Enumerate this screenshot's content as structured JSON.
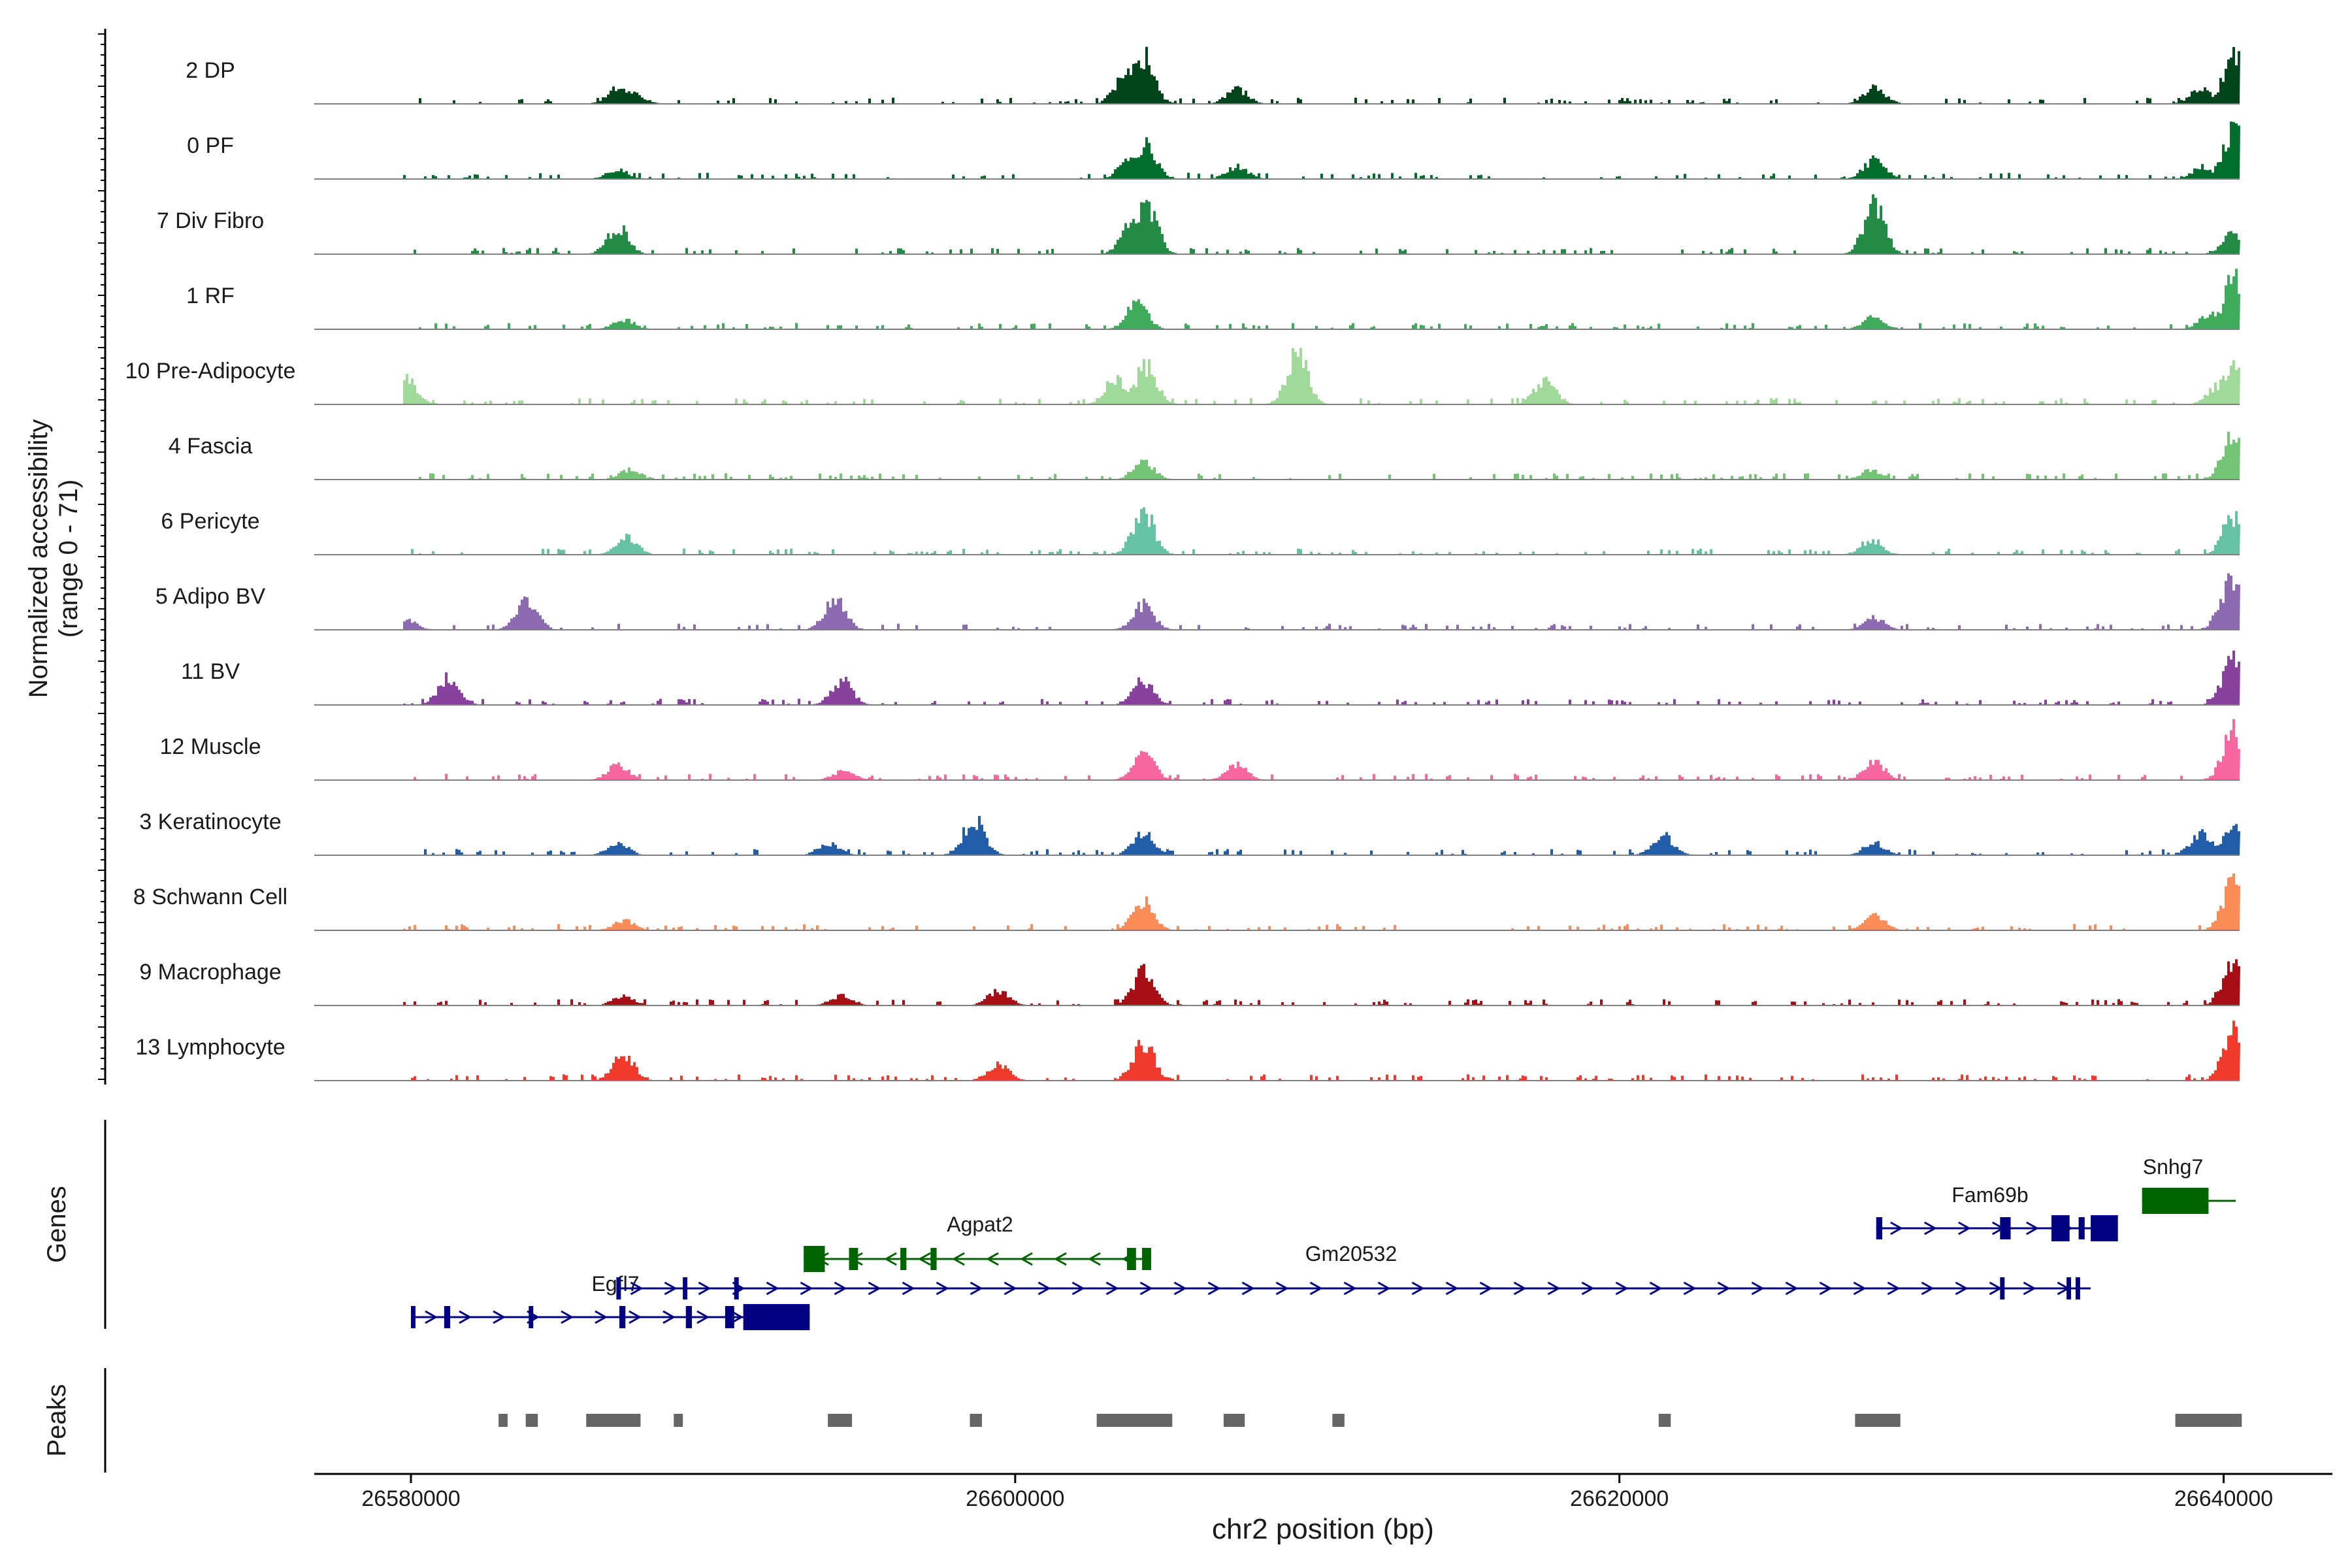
{
  "chart_data": {
    "type": "area",
    "title": "",
    "xlabel": "chr2 position (bp)",
    "ylabel": "Normalized accessibility",
    "ylabel_range": "(range 0 - 71)",
    "ylim": [
      0,
      71
    ],
    "xlim": [
      26576800,
      26643600
    ],
    "x_ticks": [
      26580000,
      26600000,
      26620000,
      26640000
    ],
    "x_tick_labels": [
      "26580000",
      "26600000",
      "26620000",
      "26640000"
    ],
    "track_labels": {
      "genes": "Genes",
      "peaks": "Peaks"
    },
    "series": [
      {
        "name": "2 DP",
        "color": "#00441b",
        "peaks": [
          [
            26586800,
            0.3
          ],
          [
            26587300,
            0.25
          ],
          [
            26603600,
            0.6
          ],
          [
            26604200,
            1.0
          ],
          [
            26607300,
            0.3
          ],
          [
            26628400,
            0.35
          ],
          [
            26639200,
            0.3
          ],
          [
            26640300,
            1.0
          ]
        ]
      },
      {
        "name": "0 PF",
        "color": "#006d2c",
        "peaks": [
          [
            26586800,
            0.2
          ],
          [
            26603800,
            0.5
          ],
          [
            26604300,
            0.7
          ],
          [
            26607300,
            0.25
          ],
          [
            26628400,
            0.4
          ],
          [
            26639300,
            0.25
          ],
          [
            26640300,
            1.0
          ]
        ]
      },
      {
        "name": "7 Div Fibro",
        "color": "#238b45",
        "peaks": [
          [
            26586800,
            0.55
          ],
          [
            26603800,
            0.6
          ],
          [
            26604300,
            1.0
          ],
          [
            26628400,
            1.0
          ],
          [
            26640300,
            0.45
          ]
        ]
      },
      {
        "name": "1 RF",
        "color": "#41ab5d",
        "peaks": [
          [
            26587000,
            0.2
          ],
          [
            26604000,
            0.55
          ],
          [
            26628400,
            0.25
          ],
          [
            26639500,
            0.3
          ],
          [
            26640300,
            1.0
          ]
        ]
      },
      {
        "name": "10 Pre-Adipocyte",
        "color": "#a1d99b",
        "peaks": [
          [
            26579800,
            0.5
          ],
          [
            26603300,
            0.55
          ],
          [
            26604300,
            0.8
          ],
          [
            26609300,
            1.0
          ],
          [
            26617500,
            0.5
          ],
          [
            26639800,
            0.4
          ],
          [
            26640300,
            0.9
          ]
        ]
      },
      {
        "name": "4 Fascia",
        "color": "#74c476",
        "peaks": [
          [
            26587200,
            0.2
          ],
          [
            26604200,
            0.35
          ],
          [
            26628300,
            0.2
          ],
          [
            26640300,
            1.0
          ]
        ]
      },
      {
        "name": "6 Pericyte",
        "color": "#66c2a4",
        "peaks": [
          [
            26587100,
            0.35
          ],
          [
            26604200,
            0.9
          ],
          [
            26628300,
            0.3
          ],
          [
            26640300,
            0.8
          ]
        ]
      },
      {
        "name": "5 Adipo BV",
        "color": "#8c6bb1",
        "peaks": [
          [
            26579800,
            0.2
          ],
          [
            26583800,
            0.6
          ],
          [
            26594000,
            0.6
          ],
          [
            26604200,
            0.5
          ],
          [
            26628400,
            0.25
          ],
          [
            26640200,
            1.0
          ]
        ]
      },
      {
        "name": "11 BV",
        "color": "#88419d",
        "peaks": [
          [
            26581200,
            0.55
          ],
          [
            26594200,
            0.5
          ],
          [
            26604200,
            0.5
          ],
          [
            26640300,
            1.0
          ]
        ]
      },
      {
        "name": "12 Muscle",
        "color": "#f768a1",
        "peaks": [
          [
            26586800,
            0.3
          ],
          [
            26594300,
            0.2
          ],
          [
            26604200,
            0.6
          ],
          [
            26607300,
            0.3
          ],
          [
            26628400,
            0.35
          ],
          [
            26640300,
            1.0
          ]
        ]
      },
      {
        "name": "3 Keratinocyte",
        "color": "#225ea8",
        "peaks": [
          [
            26586800,
            0.25
          ],
          [
            26593800,
            0.25
          ],
          [
            26598600,
            0.75
          ],
          [
            26604200,
            0.45
          ],
          [
            26621400,
            0.4
          ],
          [
            26628400,
            0.25
          ],
          [
            26639200,
            0.45
          ],
          [
            26640300,
            0.55
          ]
        ]
      },
      {
        "name": "8 Schwann Cell",
        "color": "#fc8d59",
        "peaks": [
          [
            26587000,
            0.2
          ],
          [
            26604200,
            0.6
          ],
          [
            26628400,
            0.3
          ],
          [
            26640300,
            1.0
          ]
        ]
      },
      {
        "name": "9 Macrophage",
        "color": "#a50f15",
        "peaks": [
          [
            26587000,
            0.2
          ],
          [
            26594200,
            0.2
          ],
          [
            26599400,
            0.3
          ],
          [
            26604200,
            0.7
          ],
          [
            26640300,
            1.0
          ]
        ]
      },
      {
        "name": "13 Lymphocyte",
        "color": "#ef3b2c",
        "peaks": [
          [
            26587000,
            0.5
          ],
          [
            26599400,
            0.35
          ],
          [
            26604200,
            0.8
          ],
          [
            26640300,
            1.0
          ]
        ]
      }
    ],
    "genes": [
      {
        "name": "Egfl7",
        "strand": "+",
        "color": "#000080",
        "row": 1,
        "start": 26580000,
        "end": 26593200,
        "exons": [
          [
            26580000,
            26580150
          ],
          [
            26581100,
            26581300
          ],
          [
            26583900,
            26584050
          ],
          [
            26586900,
            26587100
          ],
          [
            26589100,
            26589300
          ],
          [
            26590400,
            26590700
          ],
          [
            26591000,
            26593200
          ]
        ]
      },
      {
        "name": "Gm20532",
        "strand": "+",
        "color": "#000080",
        "row": 0,
        "start": 26586800,
        "end": 26635600,
        "exons": [
          [
            26586800,
            26586950
          ],
          [
            26589000,
            26589150
          ],
          [
            26590700,
            26590850
          ],
          [
            26632600,
            26632750
          ],
          [
            26634800,
            26634950
          ],
          [
            26635100,
            26635250
          ]
        ]
      },
      {
        "name": "Agpat2",
        "strand": "-",
        "color": "#006400",
        "row": 0,
        "start": 26593000,
        "end": 26604500,
        "exons": [
          [
            26593000,
            26593700
          ],
          [
            26594500,
            26594800
          ],
          [
            26596200,
            26596400
          ],
          [
            26597200,
            26597400
          ],
          [
            26603700,
            26604000
          ],
          [
            26604200,
            26604500
          ]
        ]
      },
      {
        "name": "Fam69b",
        "strand": "+",
        "color": "#000080",
        "row": 0,
        "start": 26628500,
        "end": 26636500,
        "exons": [
          [
            26628500,
            26628700
          ],
          [
            26632600,
            26632950
          ],
          [
            26634300,
            26634900
          ],
          [
            26635200,
            26635400
          ],
          [
            26635600,
            26636500
          ]
        ]
      },
      {
        "name": "Snhg7",
        "strand": "-",
        "color": "#006400",
        "row": 0,
        "start": 26637300,
        "end": 26640400,
        "exons": [
          [
            26637300,
            26639500
          ]
        ]
      }
    ],
    "peaks_track": [
      [
        26582900,
        26583200
      ],
      [
        26583800,
        26584200
      ],
      [
        26585800,
        26587600
      ],
      [
        26588700,
        26589000
      ],
      [
        26593800,
        26594600
      ],
      [
        26598500,
        26598900
      ],
      [
        26602700,
        26605200
      ],
      [
        26606900,
        26607600
      ],
      [
        26610500,
        26610900
      ],
      [
        26621300,
        26621700
      ],
      [
        26627800,
        26629300
      ],
      [
        26638400,
        26640600
      ]
    ]
  }
}
